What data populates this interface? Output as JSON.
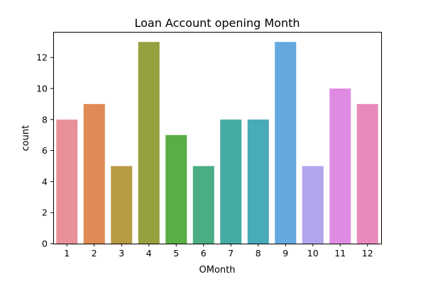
{
  "chart_data": {
    "type": "bar",
    "title": "Loan Account opening Month",
    "xlabel": "OMonth",
    "ylabel": "count",
    "categories": [
      "1",
      "2",
      "3",
      "4",
      "5",
      "6",
      "7",
      "8",
      "9",
      "10",
      "11",
      "12"
    ],
    "values": [
      8,
      9,
      5,
      13,
      7,
      5,
      8,
      8,
      13,
      5,
      10,
      9
    ],
    "colors": [
      "#e8919a",
      "#e08b55",
      "#b99a45",
      "#97a03f",
      "#5bad45",
      "#4bad84",
      "#45aca3",
      "#49aab8",
      "#63a9e0",
      "#b3a5ec",
      "#e08be3",
      "#e88bbb"
    ],
    "ylim": [
      0,
      13.65
    ],
    "yticks": [
      0,
      2,
      4,
      6,
      8,
      10,
      12
    ],
    "grid": false,
    "legend": "none"
  }
}
